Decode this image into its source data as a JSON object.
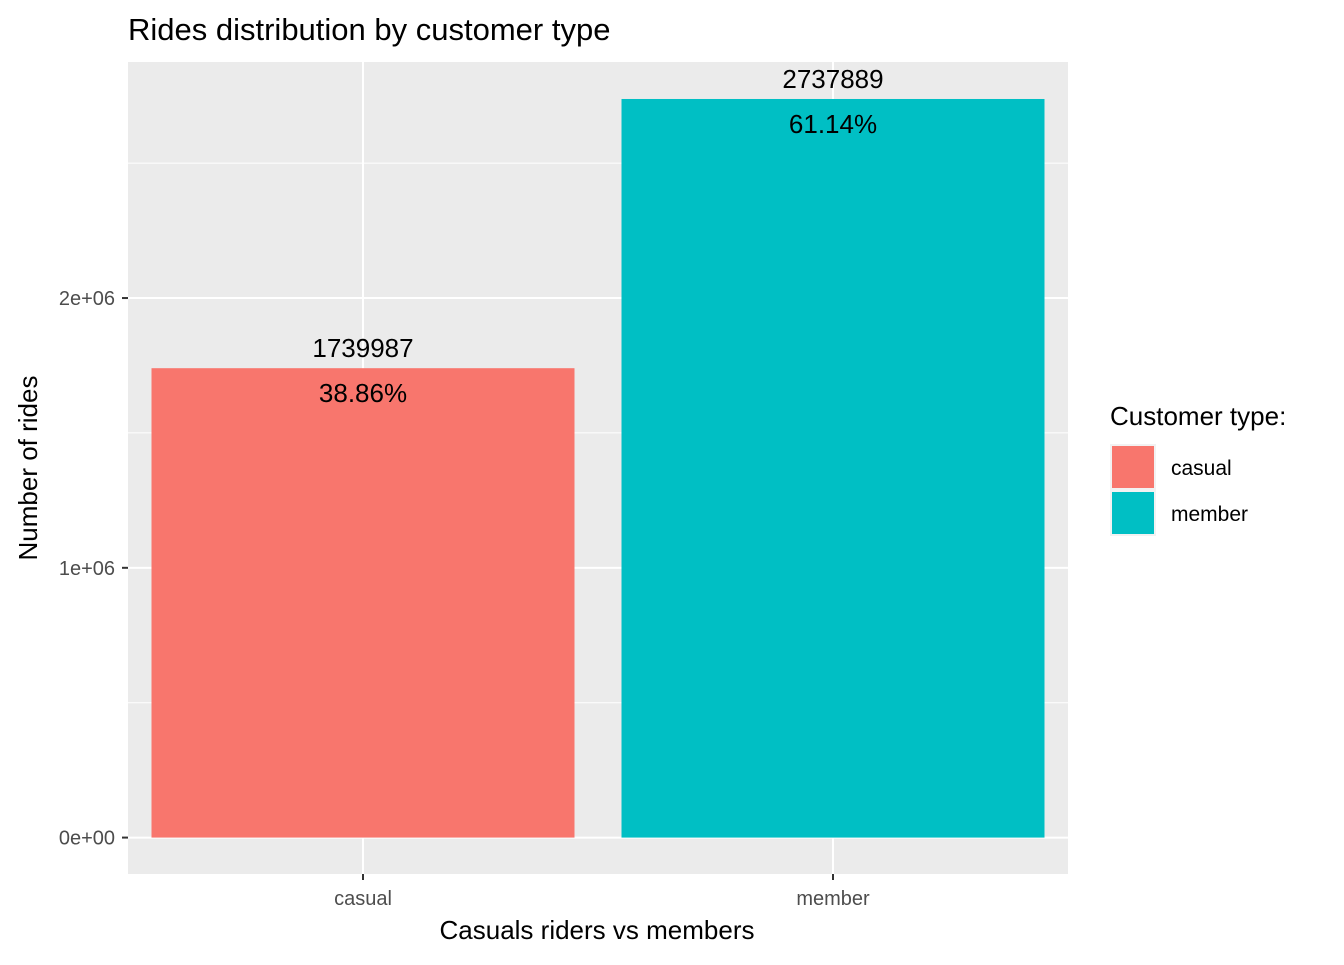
{
  "chart_data": {
    "type": "bar",
    "title": "Rides distribution by customer type",
    "xlabel": "Casuals riders vs members",
    "ylabel": "Number of rides",
    "categories": [
      "casual",
      "member"
    ],
    "values": [
      1739987,
      2737889
    ],
    "value_labels": [
      "1739987",
      "2737889"
    ],
    "percent_labels": [
      "38.86%",
      "61.14%"
    ],
    "colors": [
      "#F8766D",
      "#00BFC4"
    ],
    "ylim": [
      -135000,
      2875000
    ],
    "yticks": [
      {
        "value": 0,
        "label": "0e+00"
      },
      {
        "value": 1000000,
        "label": "1e+06"
      },
      {
        "value": 2000000,
        "label": "2e+06"
      }
    ],
    "y_minor_ticks": [
      500000,
      1500000,
      2500000
    ],
    "grid": true,
    "panel_background": "#EBEBEB",
    "legend": {
      "title": "Customer type:",
      "position": "right",
      "items": [
        {
          "label": "casual",
          "color": "#F8766D"
        },
        {
          "label": "member",
          "color": "#00BFC4"
        }
      ]
    }
  }
}
